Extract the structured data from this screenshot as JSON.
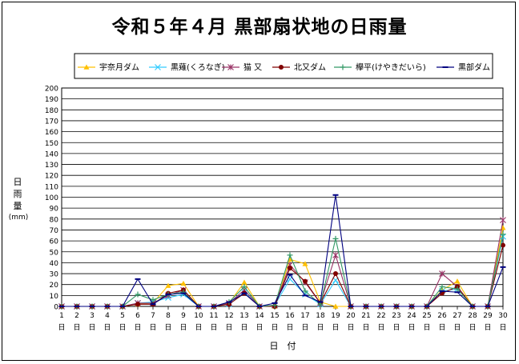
{
  "chart_data": {
    "type": "line",
    "title": "令和５年４月  黒部扇状地の日雨量",
    "ylabel": [
      "日",
      "雨",
      "量"
    ],
    "yunit": "(mm)",
    "xlabel": "日　付",
    "ylim": [
      0,
      200
    ],
    "ytick_step": 10,
    "legend_position": "top",
    "categories": [
      "1",
      "2",
      "3",
      "4",
      "5",
      "6",
      "7",
      "8",
      "9",
      "10",
      "11",
      "12",
      "13",
      "14",
      "15",
      "16",
      "17",
      "18",
      "19",
      "20",
      "21",
      "22",
      "23",
      "24",
      "25",
      "26",
      "27",
      "28",
      "29",
      "30"
    ],
    "day_char": "日",
    "series": [
      {
        "name": "宇奈月ダム",
        "color": "#FFC000",
        "marker": "triangle",
        "values": [
          0,
          0,
          0,
          0,
          0,
          2,
          3,
          19,
          21,
          0,
          0,
          3,
          22,
          0,
          0,
          43,
          39,
          4,
          0,
          0,
          0,
          0,
          0,
          0,
          0,
          15,
          23,
          0,
          0,
          72
        ]
      },
      {
        "name": "黒薙(くろなぎ)",
        "color": "#33CCFF",
        "marker": "x",
        "values": [
          0,
          0,
          0,
          0,
          0,
          3,
          4,
          8,
          11,
          0,
          0,
          2,
          13,
          0,
          1,
          25,
          11,
          2,
          24,
          0,
          0,
          0,
          0,
          0,
          0,
          14,
          16,
          0,
          0,
          64
        ]
      },
      {
        "name": "猫 又",
        "color": "#993366",
        "marker": "asterisk",
        "values": [
          0,
          0,
          0,
          0,
          0,
          3,
          3,
          10,
          15,
          0,
          0,
          3,
          15,
          0,
          1,
          38,
          22,
          3,
          47,
          0,
          0,
          0,
          0,
          0,
          0,
          30,
          18,
          0,
          0,
          79
        ]
      },
      {
        "name": "北又ダム",
        "color": "#800000",
        "marker": "circle",
        "values": [
          0,
          0,
          0,
          0,
          0,
          2,
          2,
          12,
          15,
          0,
          0,
          2,
          12,
          0,
          0,
          35,
          23,
          3,
          30,
          0,
          0,
          0,
          0,
          0,
          0,
          12,
          18,
          0,
          0,
          56
        ]
      },
      {
        "name": "欅平(けやきだいら)",
        "color": "#339966",
        "marker": "plus",
        "values": [
          0,
          0,
          0,
          0,
          0,
          11,
          6,
          11,
          13,
          0,
          0,
          4,
          18,
          0,
          1,
          47,
          14,
          2,
          62,
          0,
          0,
          0,
          0,
          0,
          0,
          18,
          16,
          0,
          0,
          66
        ]
      },
      {
        "name": "黒部ダム",
        "color": "#000080",
        "marker": "dash",
        "values": [
          0,
          0,
          0,
          0,
          0,
          25,
          2,
          11,
          12,
          0,
          0,
          4,
          12,
          0,
          3,
          29,
          10,
          4,
          102,
          0,
          0,
          0,
          0,
          0,
          0,
          14,
          13,
          0,
          0,
          36
        ]
      }
    ]
  }
}
